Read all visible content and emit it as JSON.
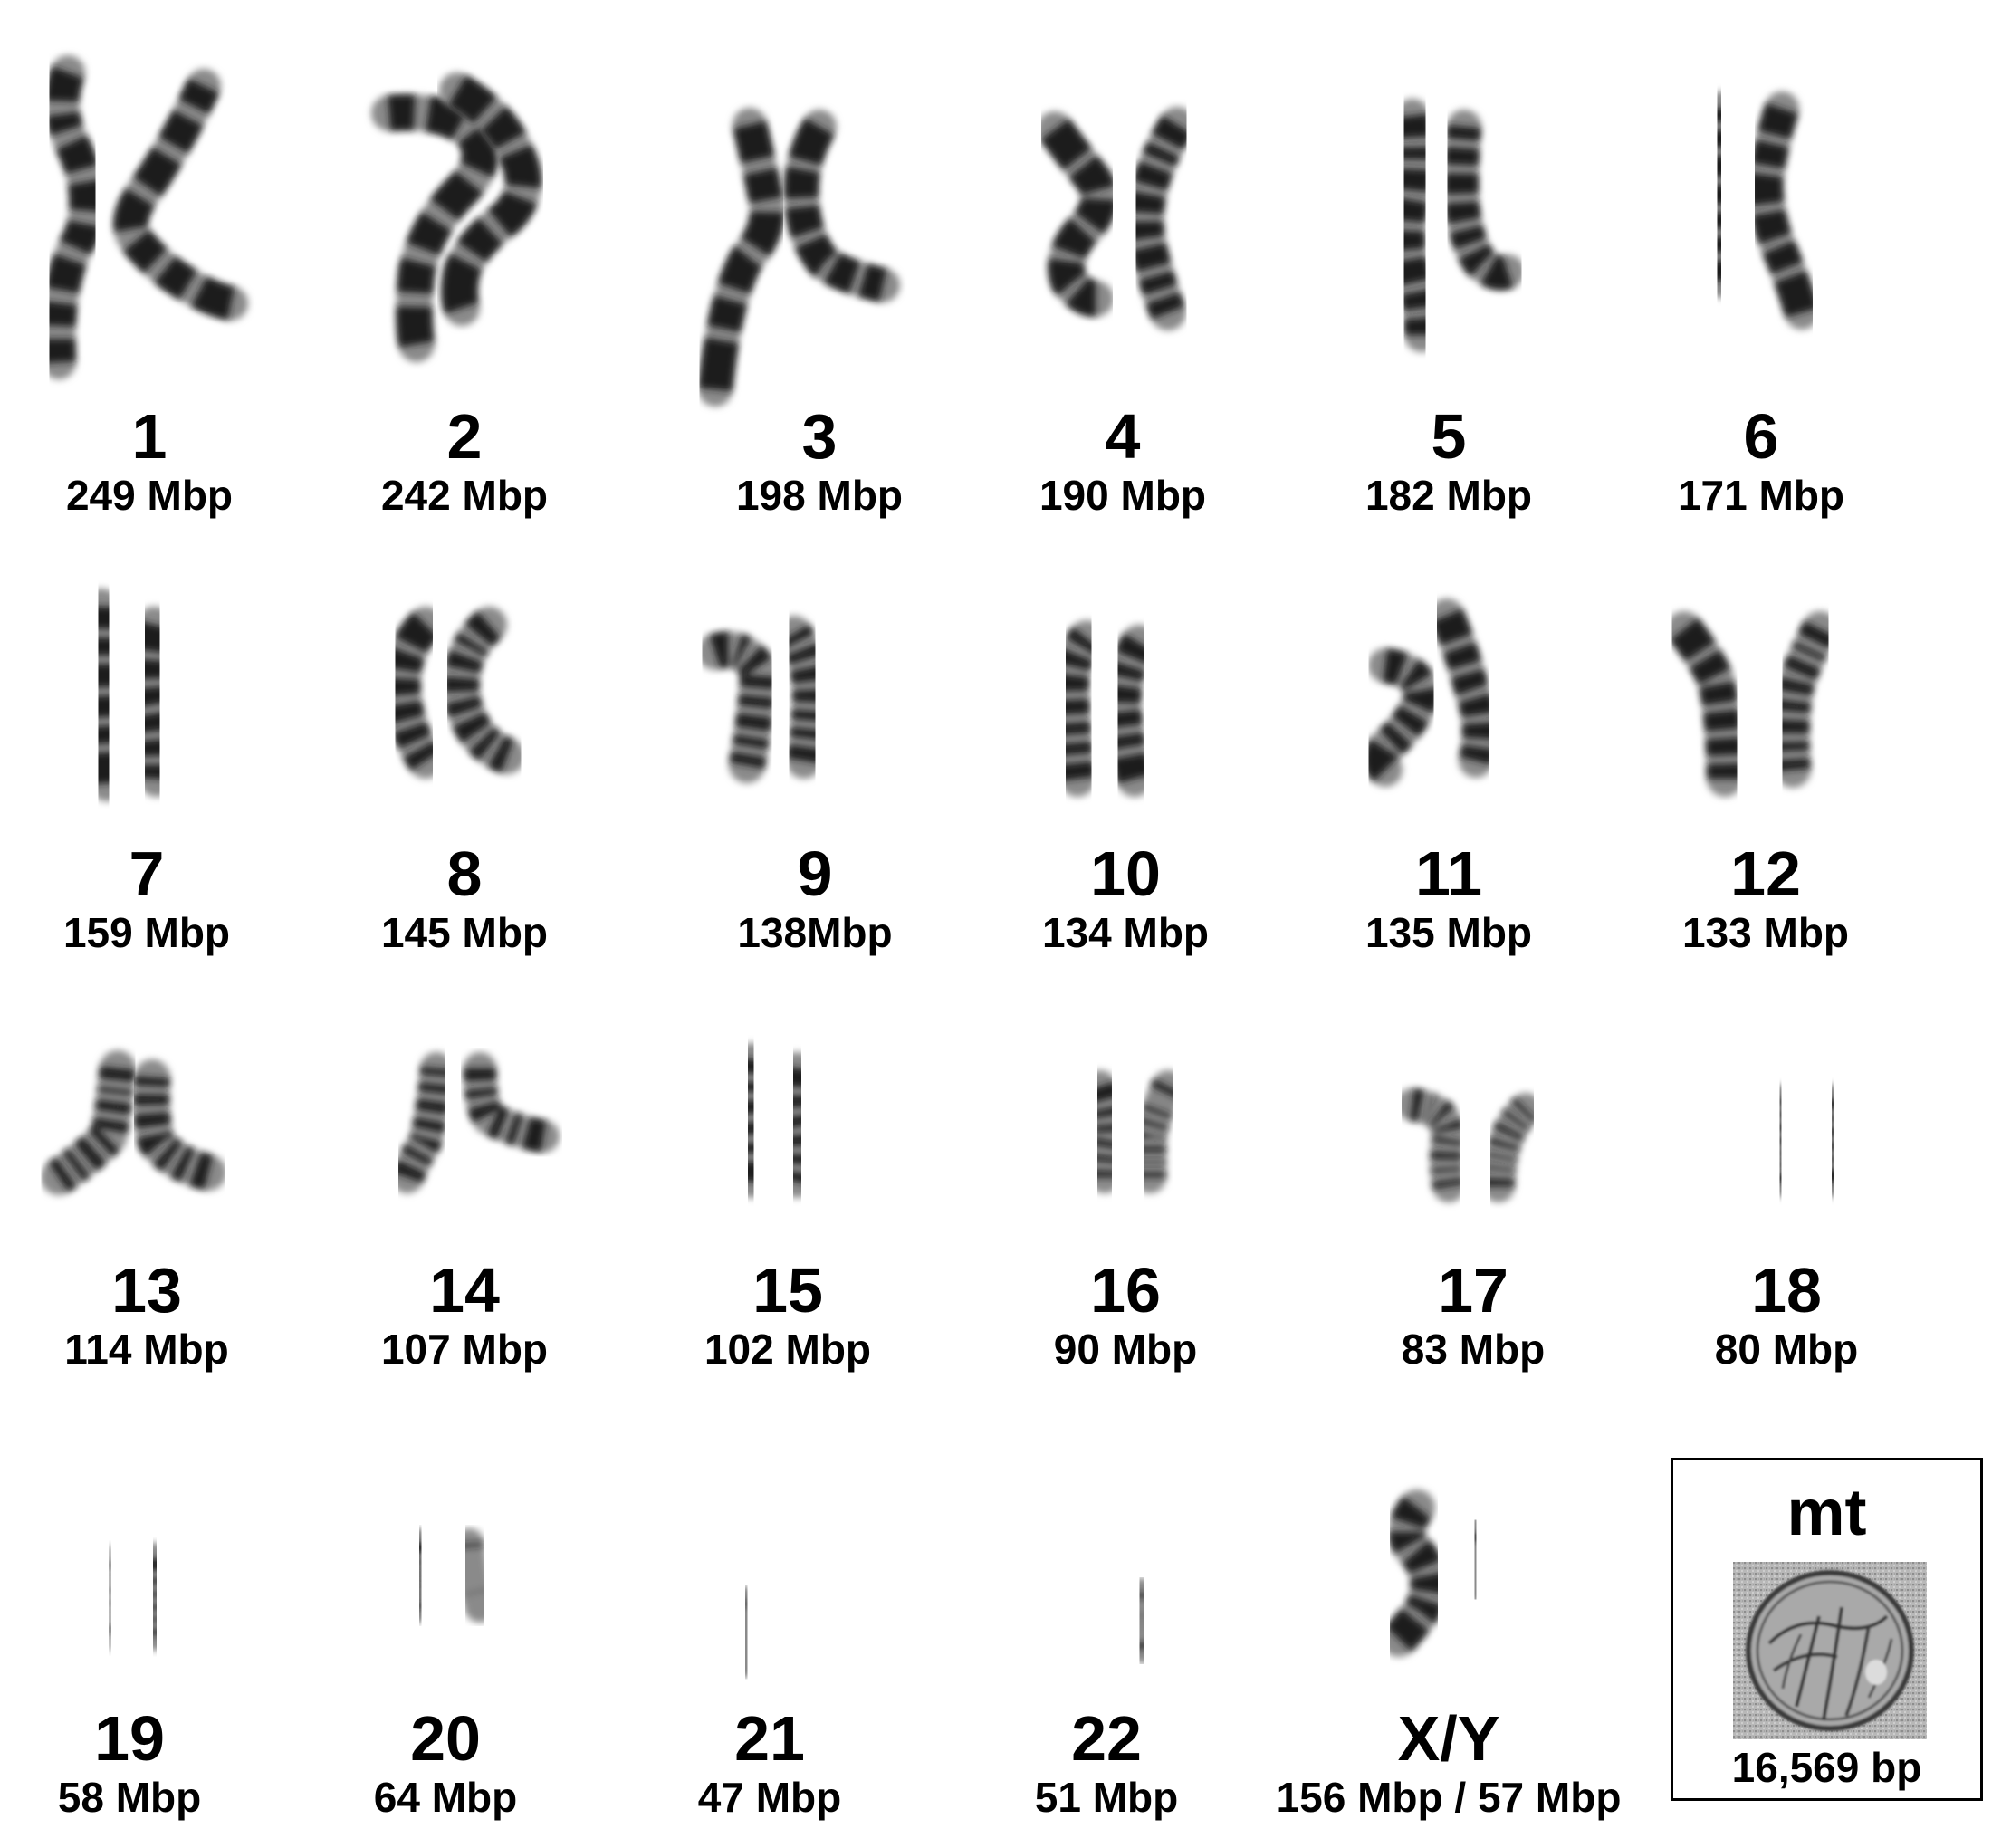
{
  "chromosomes": [
    {
      "name": "1",
      "size": "249 Mbp"
    },
    {
      "name": "2",
      "size": "242 Mbp"
    },
    {
      "name": "3",
      "size": "198 Mbp"
    },
    {
      "name": "4",
      "size": "190 Mbp"
    },
    {
      "name": "5",
      "size": "182 Mbp"
    },
    {
      "name": "6",
      "size": "171 Mbp"
    },
    {
      "name": "7",
      "size": "159 Mbp"
    },
    {
      "name": "8",
      "size": "145 Mbp"
    },
    {
      "name": "9",
      "size": "138Mbp"
    },
    {
      "name": "10",
      "size": "134 Mbp"
    },
    {
      "name": "11",
      "size": "135 Mbp"
    },
    {
      "name": "12",
      "size": "133 Mbp"
    },
    {
      "name": "13",
      "size": "114 Mbp"
    },
    {
      "name": "14",
      "size": "107 Mbp"
    },
    {
      "name": "15",
      "size": "102 Mbp"
    },
    {
      "name": "16",
      "size": "90 Mbp"
    },
    {
      "name": "17",
      "size": "83 Mbp"
    },
    {
      "name": "18",
      "size": "80 Mbp"
    },
    {
      "name": "19",
      "size": "58 Mbp"
    },
    {
      "name": "20",
      "size": "64 Mbp"
    },
    {
      "name": "21",
      "size": "47 Mbp"
    },
    {
      "name": "22",
      "size": "51 Mbp"
    },
    {
      "name": "X/Y",
      "size": "156 Mbp / 57 Mbp"
    }
  ],
  "mitochondrion": {
    "name": "mt",
    "size": "16,569 bp"
  },
  "colors": {
    "chromatid": "#8a8a8a",
    "band": "#1c1c1c",
    "background": "#ffffff",
    "border": "#000000"
  }
}
